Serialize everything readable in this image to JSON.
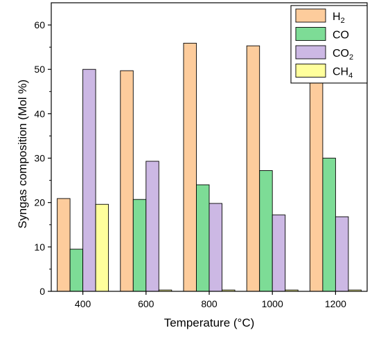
{
  "chart_data": {
    "type": "bar",
    "title": "",
    "xlabel": "Temperature (°C)",
    "ylabel": "Syngas composition (Mol %)",
    "categories": [
      "400",
      "600",
      "800",
      "1000",
      "1200"
    ],
    "ylim": [
      0,
      65
    ],
    "yticks": [
      0,
      10,
      20,
      30,
      40,
      50,
      60
    ],
    "grid": false,
    "legend_position": "top-right",
    "series": [
      {
        "name": "H2",
        "sub": "2",
        "base": "H",
        "color": "#FDCC9C",
        "values": [
          20.9,
          49.7,
          55.9,
          55.3,
          52.9
        ]
      },
      {
        "name": "CO",
        "sub": "",
        "base": "CO",
        "color": "#7DDC96",
        "values": [
          9.5,
          20.7,
          24.0,
          27.2,
          30.0
        ]
      },
      {
        "name": "CO2",
        "sub": "2",
        "base": "CO",
        "color": "#CCB8E4",
        "values": [
          50.0,
          29.3,
          19.8,
          17.2,
          16.8
        ]
      },
      {
        "name": "CH4",
        "sub": "4",
        "base": "CH",
        "color": "#FFFF9C",
        "values": [
          19.6,
          0.3,
          0.3,
          0.3,
          0.3
        ]
      }
    ]
  }
}
